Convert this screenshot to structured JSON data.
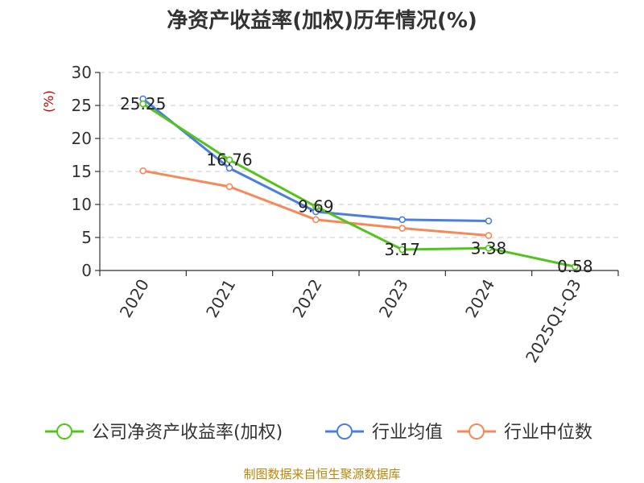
{
  "chart_data": {
    "type": "line",
    "title": "净资产收益率(加权)历年情况(%)",
    "ylabel": "(%)",
    "xlabel": "",
    "categories": [
      "2020",
      "2021",
      "2022",
      "2023",
      "2024",
      "2025Q1-Q3"
    ],
    "ylim": [
      0,
      30
    ],
    "yticks": [
      0,
      5,
      10,
      15,
      20,
      25,
      30
    ],
    "grid": true,
    "legend_position": "bottom",
    "series": [
      {
        "name": "公司净资产收益率(加权)",
        "color": "#52c41a",
        "values": [
          25.25,
          16.76,
          9.69,
          3.17,
          3.38,
          0.58
        ],
        "labels": [
          "25.25",
          "16.76",
          "9.69",
          "3.17",
          "3.38",
          "0.58"
        ]
      },
      {
        "name": "行业均值",
        "color": "#4a7fdc",
        "values": [
          26.0,
          15.5,
          8.9,
          7.7,
          7.5,
          null
        ]
      },
      {
        "name": "行业中位数",
        "color": "#f5895a",
        "values": [
          15.1,
          12.7,
          7.7,
          6.4,
          5.3,
          null
        ]
      }
    ],
    "source": "制图数据来自恒生聚源数据库"
  }
}
